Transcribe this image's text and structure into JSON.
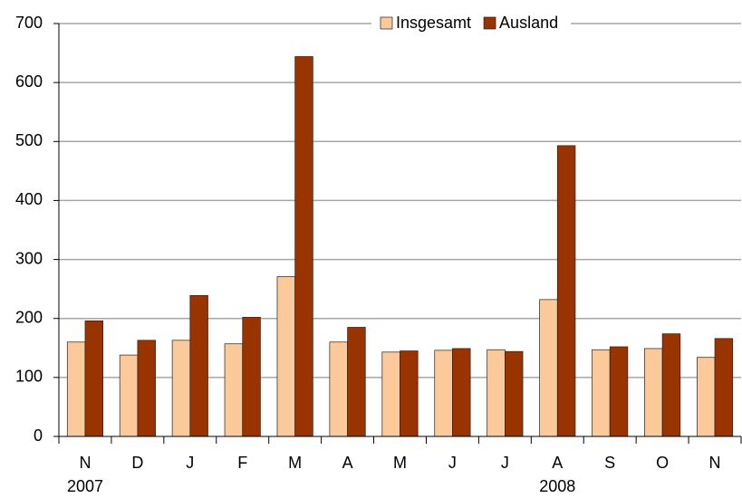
{
  "chart_data": {
    "type": "bar",
    "categories": [
      "N",
      "D",
      "J",
      "F",
      "M",
      "A",
      "M",
      "J",
      "J",
      "A",
      "S",
      "O",
      "N"
    ],
    "secondary_labels": [
      "2007",
      null,
      null,
      null,
      null,
      null,
      null,
      null,
      null,
      "2008",
      null,
      null,
      null
    ],
    "series": [
      {
        "name": "Insgesamt",
        "color": "#fcc99b",
        "values": [
          160,
          138,
          163,
          157,
          271,
          160,
          143,
          146,
          147,
          232,
          147,
          149,
          134
        ]
      },
      {
        "name": "Ausland",
        "color": "#993300",
        "values": [
          196,
          163,
          239,
          202,
          644,
          185,
          145,
          149,
          144,
          493,
          152,
          174,
          166
        ]
      }
    ],
    "ylim": [
      0,
      700
    ],
    "yticks": [
      0,
      100,
      200,
      300,
      400,
      500,
      600,
      700
    ],
    "grid": true,
    "legend": "top"
  }
}
